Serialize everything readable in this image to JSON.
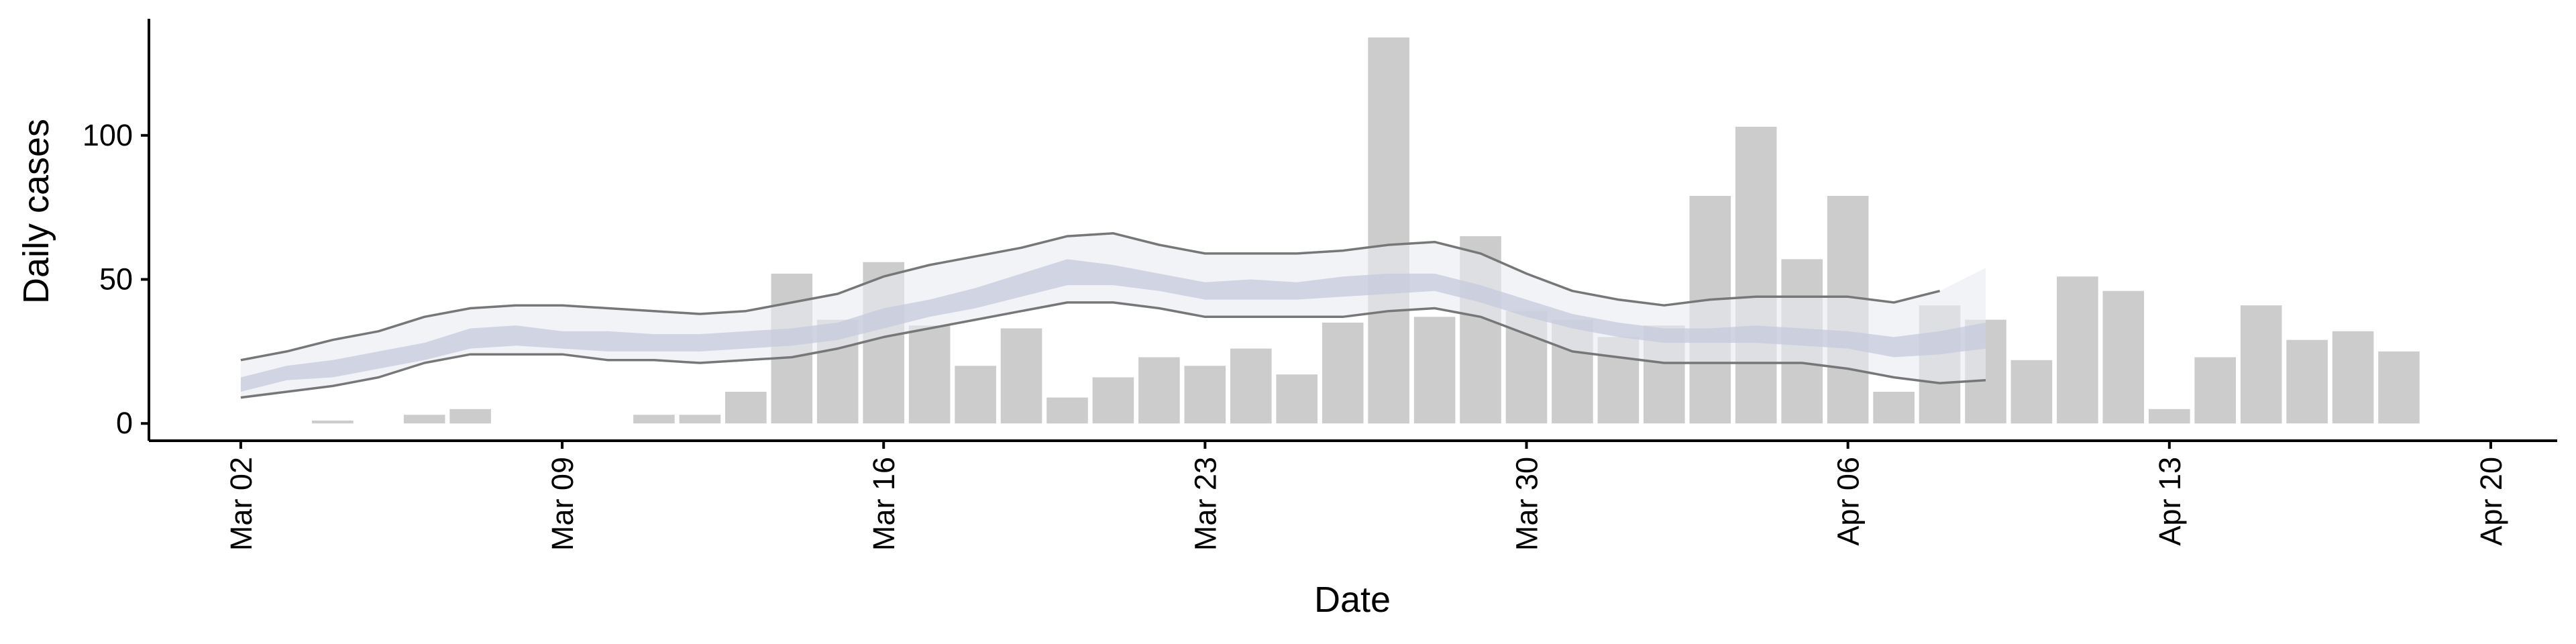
{
  "chart_data": {
    "type": "bar",
    "title": "",
    "xlabel": "Date",
    "ylabel": "Daily cases",
    "ylim": [
      -6,
      140
    ],
    "x_tick_labels": [
      "Mar 02",
      "Mar 09",
      "Mar 16",
      "Mar 23",
      "Mar 30",
      "Apr 06",
      "Apr 13",
      "Apr 20"
    ],
    "y_tick_labels": [
      "0",
      "50",
      "100"
    ],
    "y_ticks": [
      0,
      50,
      100
    ],
    "grid": false,
    "legend": "none",
    "colors": {
      "bars": "#cccccc",
      "outer_band": "#e9ebf2",
      "inner_band": "#c4cadc",
      "bound_lines": "#777777"
    },
    "series": [
      {
        "type": "bar",
        "dates": [
          "2020-03-04",
          "2020-03-06",
          "2020-03-07",
          "2020-03-11",
          "2020-03-12",
          "2020-03-13",
          "2020-03-14",
          "2020-03-15",
          "2020-03-16",
          "2020-03-17",
          "2020-03-18",
          "2020-03-19",
          "2020-03-20",
          "2020-03-21",
          "2020-03-22",
          "2020-03-23",
          "2020-03-24",
          "2020-03-25",
          "2020-03-26",
          "2020-03-27",
          "2020-03-28",
          "2020-03-29",
          "2020-03-30",
          "2020-03-31",
          "2020-04-01",
          "2020-04-02",
          "2020-04-03",
          "2020-04-04",
          "2020-04-05",
          "2020-04-06",
          "2020-04-07",
          "2020-04-08",
          "2020-04-09",
          "2020-04-10",
          "2020-04-11",
          "2020-04-12",
          "2020-04-13",
          "2020-04-14",
          "2020-04-15",
          "2020-04-16",
          "2020-04-17",
          "2020-04-18"
        ],
        "values": [
          1,
          3,
          5,
          3,
          3,
          11,
          52,
          36,
          56,
          34,
          20,
          33,
          9,
          16,
          23,
          20,
          26,
          17,
          35,
          134,
          37,
          65,
          39,
          36,
          30,
          34,
          79,
          103,
          57,
          79,
          11,
          41,
          36,
          22,
          51,
          46,
          5,
          23,
          41,
          29,
          32,
          25
        ]
      },
      {
        "type": "band",
        "dates": [
          "2020-03-02",
          "2020-03-03",
          "2020-03-04",
          "2020-03-05",
          "2020-03-06",
          "2020-03-07",
          "2020-03-08",
          "2020-03-09",
          "2020-03-10",
          "2020-03-11",
          "2020-03-12",
          "2020-03-13",
          "2020-03-14",
          "2020-03-15",
          "2020-03-16",
          "2020-03-17",
          "2020-03-18",
          "2020-03-19",
          "2020-03-20",
          "2020-03-21",
          "2020-03-22",
          "2020-03-23",
          "2020-03-24",
          "2020-03-25",
          "2020-03-26",
          "2020-03-27",
          "2020-03-28",
          "2020-03-29",
          "2020-03-30",
          "2020-03-31",
          "2020-04-01",
          "2020-04-02",
          "2020-04-03",
          "2020-04-04",
          "2020-04-05",
          "2020-04-06",
          "2020-04-07",
          "2020-04-08",
          "2020-04-09"
        ],
        "outer_upper": [
          22,
          25,
          29,
          32,
          37,
          40,
          41,
          41,
          40,
          39,
          38,
          39,
          42,
          45,
          51,
          55,
          58,
          61,
          65,
          66,
          62,
          59,
          59,
          59,
          60,
          62,
          63,
          59,
          52,
          46,
          43,
          41,
          43,
          44,
          44,
          44,
          42,
          46,
          54
        ],
        "outer_lower": [
          9,
          11,
          13,
          16,
          21,
          24,
          24,
          24,
          22,
          22,
          21,
          22,
          23,
          26,
          30,
          33,
          36,
          39,
          42,
          42,
          40,
          37,
          37,
          37,
          37,
          39,
          40,
          37,
          31,
          25,
          23,
          21,
          21,
          21,
          21,
          19,
          16,
          14,
          15
        ],
        "inner_upper": [
          16,
          20,
          22,
          25,
          28,
          33,
          34,
          32,
          32,
          31,
          31,
          32,
          33,
          35,
          40,
          43,
          47,
          52,
          57,
          55,
          52,
          49,
          50,
          49,
          51,
          52,
          52,
          48,
          43,
          38,
          35,
          33,
          33,
          34,
          33,
          32,
          30,
          32,
          35
        ],
        "inner_lower": [
          11,
          15,
          16,
          19,
          22,
          26,
          27,
          26,
          25,
          25,
          25,
          26,
          27,
          29,
          33,
          37,
          40,
          44,
          48,
          48,
          46,
          43,
          43,
          43,
          44,
          45,
          46,
          42,
          37,
          33,
          30,
          28,
          28,
          28,
          27,
          26,
          23,
          24,
          26
        ],
        "bound_upper_line_end": "2020-04-08",
        "bound_lower_line_end": "2020-04-09"
      }
    ]
  }
}
